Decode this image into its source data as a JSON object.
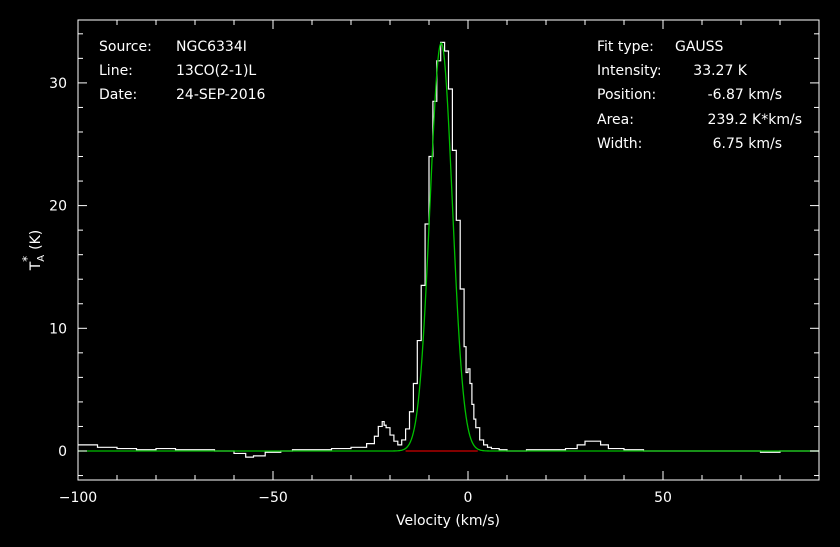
{
  "chart_data": {
    "type": "line",
    "xlabel": "Velocity (km/s)",
    "ylabel": "T",
    "ylabel_sub": "A",
    "ylabel_sup": "*",
    "ylabel_unit": "(K)",
    "xlim": [
      -100,
      90
    ],
    "ylim": [
      -2.5,
      35
    ],
    "xticks": [
      -100,
      -50,
      0,
      50
    ],
    "yticks": [
      0,
      10,
      20,
      30
    ],
    "grid": false,
    "info_left": [
      {
        "key": "Source:",
        "value": "NGC6334I"
      },
      {
        "key": "Line:",
        "value": "13CO(2-1)L"
      },
      {
        "key": "Date:",
        "value": "24-SEP-2016"
      }
    ],
    "info_right": [
      {
        "key": "Fit type:",
        "value": "GAUSS"
      },
      {
        "key": "Intensity:",
        "value": "33.27 K"
      },
      {
        "key": "Position:",
        "value": "-6.87 km/s"
      },
      {
        "key": "Area:",
        "value": "239.2 K*km/s"
      },
      {
        "key": "Width:",
        "value": "6.75 km/s"
      }
    ],
    "fit": {
      "amplitude": 33.27,
      "center": -6.87,
      "fwhm": 6.75
    },
    "series": [
      {
        "color": "#ffffff",
        "x": [
          -100,
          -95,
          -90,
          -85,
          -80,
          -75,
          -70,
          -65,
          -60,
          -57,
          -55,
          -52,
          -48,
          -45,
          -40,
          -35,
          -30,
          -26,
          -24,
          -23,
          -22,
          -21.5,
          -21,
          -20,
          -19,
          -18,
          -17,
          -16,
          -15,
          -14,
          -13,
          -12,
          -11,
          -10,
          -9,
          -8,
          -7,
          -6,
          -5,
          -4,
          -3,
          -2,
          -1,
          -0.5,
          0,
          0.5,
          1,
          1.5,
          2,
          3,
          4,
          5,
          6,
          8,
          10,
          15,
          20,
          25,
          28,
          30,
          32,
          34,
          36,
          40,
          45,
          50,
          55,
          60,
          65,
          70,
          75,
          80,
          85,
          90
        ],
        "y": [
          0.5,
          0.3,
          0.2,
          0.1,
          0.2,
          0.1,
          0.1,
          0.0,
          -0.2,
          -0.5,
          -0.4,
          -0.1,
          0.0,
          0.1,
          0.1,
          0.2,
          0.3,
          0.6,
          1.2,
          2.0,
          2.4,
          2.1,
          1.9,
          1.3,
          0.8,
          0.5,
          0.9,
          1.8,
          3.2,
          5.5,
          9.0,
          13.5,
          18.5,
          24.0,
          28.5,
          31.8,
          33.3,
          32.6,
          29.5,
          24.5,
          18.8,
          13.2,
          8.5,
          6.4,
          6.7,
          5.5,
          3.8,
          2.6,
          1.9,
          0.9,
          0.5,
          0.3,
          0.2,
          0.1,
          0.0,
          0.1,
          0.1,
          0.2,
          0.5,
          0.8,
          0.8,
          0.5,
          0.2,
          0.1,
          0.0,
          0.0,
          0.0,
          0.0,
          0.0,
          0.0,
          -0.1,
          0.0,
          0.0,
          0.0
        ]
      },
      {
        "color": "#00c000",
        "function": "gaussian-fit"
      },
      {
        "color": "#d00000",
        "x": [
          -16.0,
          2.5
        ],
        "y": [
          0,
          0
        ]
      }
    ]
  }
}
